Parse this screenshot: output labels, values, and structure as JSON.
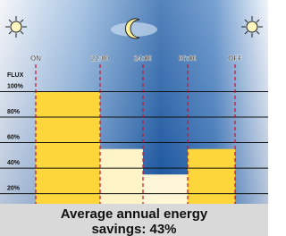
{
  "chart_data": {
    "type": "step",
    "y_label": "FLUX",
    "time_marks": [
      "ON",
      "22:00",
      "24:00",
      "06:00",
      "OFF"
    ],
    "values": [
      100,
      55,
      35,
      55
    ],
    "colors": [
      "#fcd63a",
      "#fff3c8",
      "#fff6d8",
      "#fcd63a"
    ],
    "divider_color": "#c8102e",
    "ylim": [
      12,
      120
    ],
    "yticks": [
      {
        "value": 100,
        "label": "100%"
      },
      {
        "value": 80,
        "label": "80%"
      },
      {
        "value": 60,
        "label": "60%"
      },
      {
        "value": 40,
        "label": "40%"
      },
      {
        "value": 20,
        "label": "20%"
      }
    ],
    "grid": true,
    "caption": "Average annual energy savings: 43%"
  }
}
